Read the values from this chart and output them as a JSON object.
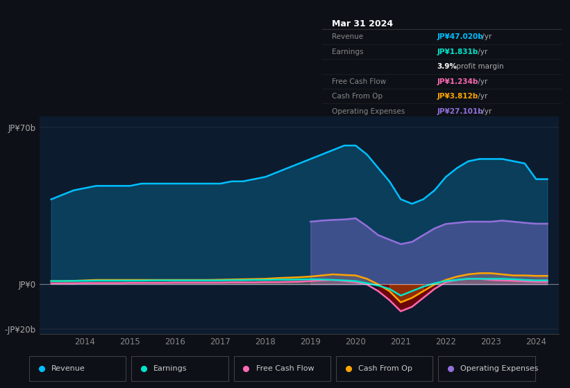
{
  "bg_color": "#0d1117",
  "chart_bg": "#0d1b2e",
  "title": "Mar 31 2024",
  "ylim": [
    -22,
    75
  ],
  "ytick_positions": [
    -20,
    0,
    70
  ],
  "ytick_labels": [
    "-JP¥20b",
    "JP¥0",
    "JP¥70b"
  ],
  "xmin": 2013.0,
  "xmax": 2024.5,
  "xticks": [
    2014,
    2015,
    2016,
    2017,
    2018,
    2019,
    2020,
    2021,
    2022,
    2023,
    2024
  ],
  "legend": [
    {
      "label": "Revenue",
      "color": "#00bfff"
    },
    {
      "label": "Earnings",
      "color": "#00e5cc"
    },
    {
      "label": "Free Cash Flow",
      "color": "#ff69b4"
    },
    {
      "label": "Cash From Op",
      "color": "#ffa500"
    },
    {
      "label": "Operating Expenses",
      "color": "#9370db"
    }
  ],
  "series": {
    "x": [
      2013.25,
      2013.5,
      2013.75,
      2014.0,
      2014.25,
      2014.5,
      2014.75,
      2015.0,
      2015.25,
      2015.5,
      2015.75,
      2016.0,
      2016.25,
      2016.5,
      2016.75,
      2017.0,
      2017.25,
      2017.5,
      2017.75,
      2018.0,
      2018.25,
      2018.5,
      2018.75,
      2019.0,
      2019.25,
      2019.5,
      2019.75,
      2020.0,
      2020.25,
      2020.5,
      2020.75,
      2021.0,
      2021.25,
      2021.5,
      2021.75,
      2022.0,
      2022.25,
      2022.5,
      2022.75,
      2023.0,
      2023.25,
      2023.5,
      2023.75,
      2024.0,
      2024.25
    ],
    "revenue": [
      38,
      40,
      42,
      43,
      44,
      44,
      44,
      44,
      45,
      45,
      45,
      45,
      45,
      45,
      45,
      45,
      46,
      46,
      47,
      48,
      50,
      52,
      54,
      56,
      58,
      60,
      62,
      62,
      58,
      52,
      46,
      38,
      36,
      38,
      42,
      48,
      52,
      55,
      56,
      56,
      56,
      55,
      54,
      47,
      47
    ],
    "earnings": [
      1.5,
      1.5,
      1.6,
      1.6,
      1.7,
      1.7,
      1.7,
      1.7,
      1.7,
      1.8,
      1.8,
      1.8,
      1.8,
      1.8,
      1.8,
      1.8,
      1.9,
      1.9,
      2.0,
      2.0,
      2.1,
      2.1,
      2.2,
      2.3,
      2.2,
      2.0,
      1.8,
      1.5,
      0.5,
      -0.5,
      -2.0,
      -5.0,
      -3.0,
      -1.0,
      0.5,
      1.5,
      2.0,
      2.5,
      2.5,
      2.5,
      2.5,
      2.3,
      2.0,
      1.8,
      1.8
    ],
    "free_cash_flow": [
      0.5,
      0.5,
      0.5,
      0.6,
      0.6,
      0.6,
      0.6,
      0.7,
      0.7,
      0.7,
      0.7,
      0.8,
      0.8,
      0.8,
      0.8,
      0.8,
      0.9,
      0.9,
      0.9,
      1.0,
      1.0,
      1.1,
      1.2,
      1.5,
      1.8,
      2.0,
      1.5,
      1.0,
      0.0,
      -3.0,
      -7.0,
      -12.0,
      -10.0,
      -6.0,
      -2.0,
      1.0,
      2.0,
      2.5,
      2.5,
      2.0,
      1.8,
      1.6,
      1.4,
      1.2,
      1.2
    ],
    "cash_from_op": [
      1.5,
      1.5,
      1.6,
      1.8,
      2.0,
      2.0,
      2.0,
      2.0,
      2.0,
      2.0,
      2.0,
      2.0,
      2.0,
      2.0,
      2.0,
      2.1,
      2.2,
      2.3,
      2.4,
      2.5,
      2.8,
      3.0,
      3.2,
      3.5,
      4.0,
      4.5,
      4.2,
      4.0,
      2.5,
      0.0,
      -3.0,
      -8.0,
      -6.0,
      -3.0,
      0.0,
      2.0,
      3.5,
      4.5,
      5.0,
      5.0,
      4.5,
      4.0,
      4.0,
      3.8,
      3.8
    ],
    "op_expenses": [
      null,
      null,
      null,
      null,
      null,
      null,
      null,
      null,
      null,
      null,
      null,
      null,
      null,
      null,
      null,
      null,
      null,
      null,
      null,
      null,
      null,
      null,
      null,
      28,
      28.5,
      28.8,
      29.0,
      29.5,
      26.0,
      22.0,
      20.0,
      18.0,
      19.0,
      22.0,
      25.0,
      27.0,
      27.5,
      28.0,
      28.0,
      28.0,
      28.5,
      28.0,
      27.5,
      27.1,
      27.1
    ]
  },
  "infobox": {
    "title": "Mar 31 2024",
    "rows": [
      {
        "label": "Revenue",
        "val": "JP¥47.020b",
        "suffix": " /yr",
        "val_color": "#00bfff",
        "label_color": "#888888"
      },
      {
        "label": "Earnings",
        "val": "JP¥1.831b",
        "suffix": " /yr",
        "val_color": "#00e5cc",
        "label_color": "#888888"
      },
      {
        "label": "",
        "val": "3.9%",
        "suffix": " profit margin",
        "val_color": "#ffffff",
        "label_color": "#888888",
        "bold_val": true
      },
      {
        "label": "Free Cash Flow",
        "val": "JP¥1.234b",
        "suffix": " /yr",
        "val_color": "#ff69b4",
        "label_color": "#888888"
      },
      {
        "label": "Cash From Op",
        "val": "JP¥3.812b",
        "suffix": " /yr",
        "val_color": "#ffa500",
        "label_color": "#888888"
      },
      {
        "label": "Operating Expenses",
        "val": "JP¥27.101b",
        "suffix": " /yr",
        "val_color": "#9370db",
        "label_color": "#888888"
      }
    ]
  }
}
